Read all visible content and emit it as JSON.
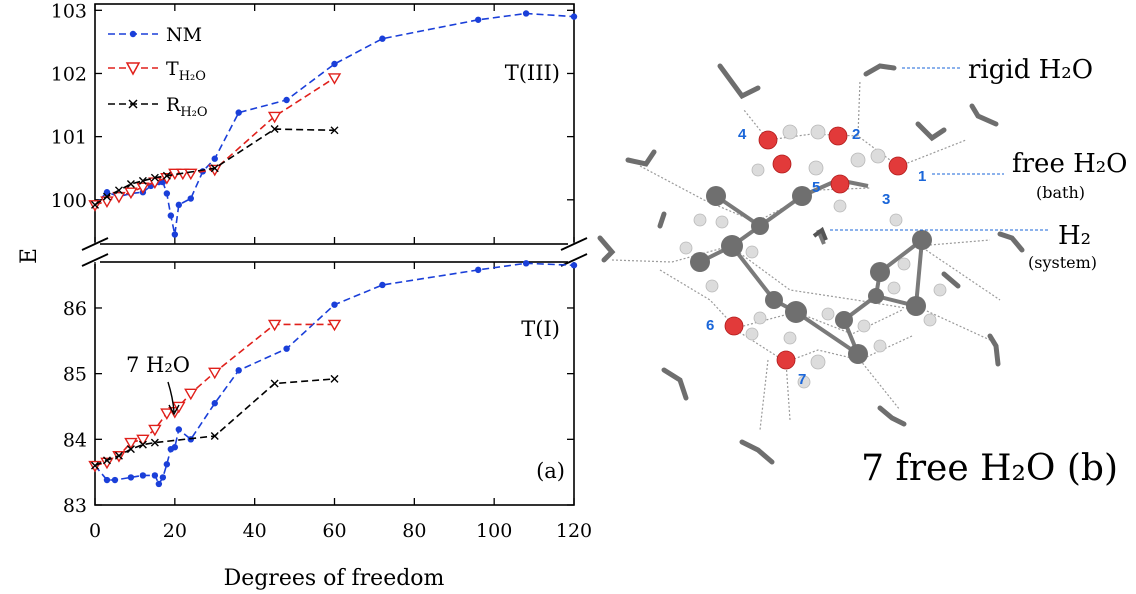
{
  "panel_a": {
    "label": "(a)",
    "ylabel": "E",
    "xlabel": "Degrees of freedom",
    "annotation_top": "T(III)",
    "annotation_bottom": "T(I)",
    "arrow_note": "7 H₂O"
  },
  "panel_b": {
    "label": "7 free H₂O (b)",
    "rigid_label": "rigid H₂O",
    "free_label": "free H₂O",
    "bath_label": "(bath)",
    "h2_label": "H₂",
    "system_label": "(system)",
    "water_numbers": [
      "1",
      "2",
      "3",
      "4",
      "5",
      "6",
      "7"
    ]
  },
  "legend": {
    "placement": "top-left",
    "entries": [
      {
        "key": "nm",
        "label": "NM",
        "color": "#1a3fd9",
        "marker": "dot"
      },
      {
        "key": "t",
        "label": "T",
        "subscript": "H₂O",
        "color": "#e0201b",
        "marker": "triangle-down"
      },
      {
        "key": "r",
        "label": "R",
        "subscript": "H₂O",
        "color": "#000000",
        "marker": "x"
      }
    ]
  },
  "chart_data": [
    {
      "type": "line",
      "title": "",
      "xlabel": "Degrees of freedom",
      "ylabel": "E",
      "annotation": "T(III)",
      "xlim": [
        0,
        120
      ],
      "ylim": [
        99.3,
        103.1
      ],
      "x_ticks": [
        0,
        20,
        40,
        60,
        80,
        100,
        120
      ],
      "y_ticks": [
        100,
        101,
        102,
        103
      ],
      "series": [
        {
          "name": "NM",
          "color": "#1a3fd9",
          "marker": "dot",
          "x": [
            0,
            3,
            6,
            9,
            12,
            14,
            16,
            17,
            18,
            19,
            20,
            21,
            24,
            27,
            30,
            36,
            48,
            60,
            72,
            96,
            108,
            120
          ],
          "y": [
            99.92,
            100.12,
            100.05,
            100.1,
            100.12,
            100.22,
            100.28,
            100.28,
            100.1,
            99.75,
            99.45,
            99.92,
            100.02,
            100.45,
            100.65,
            101.38,
            101.58,
            102.15,
            102.55,
            102.85,
            102.95,
            102.9
          ]
        },
        {
          "name": "T H₂O",
          "color": "#e0201b",
          "marker": "triangle-down",
          "x": [
            0,
            3,
            6,
            9,
            12,
            15,
            18,
            20,
            22,
            24,
            30,
            45,
            60
          ],
          "y": [
            99.92,
            99.98,
            100.05,
            100.12,
            100.2,
            100.28,
            100.35,
            100.42,
            100.42,
            100.42,
            100.48,
            101.32,
            101.93
          ]
        },
        {
          "name": "R H₂O",
          "color": "#000000",
          "marker": "x",
          "x": [
            0,
            3,
            6,
            9,
            12,
            15,
            18,
            30,
            45,
            60
          ],
          "y": [
            99.92,
            100.05,
            100.15,
            100.25,
            100.3,
            100.35,
            100.38,
            100.5,
            101.12,
            101.1
          ]
        }
      ]
    },
    {
      "type": "line",
      "title": "",
      "xlabel": "Degrees of freedom",
      "ylabel": "E",
      "annotation": "T(I)",
      "xlim": [
        0,
        120
      ],
      "ylim": [
        83,
        86.7
      ],
      "x_ticks": [
        0,
        20,
        40,
        60,
        80,
        100,
        120
      ],
      "y_ticks": [
        83,
        84,
        85,
        86
      ],
      "series": [
        {
          "name": "NM",
          "color": "#1a3fd9",
          "marker": "dot",
          "x": [
            0,
            3,
            5,
            9,
            12,
            15,
            16,
            17,
            18,
            19,
            20,
            21,
            24,
            30,
            36,
            48,
            60,
            72,
            96,
            108,
            120
          ],
          "y": [
            83.6,
            83.38,
            83.38,
            83.42,
            83.45,
            83.45,
            83.32,
            83.42,
            83.62,
            83.85,
            83.88,
            84.15,
            84.0,
            84.55,
            85.05,
            85.38,
            86.05,
            86.35,
            86.58,
            86.68,
            86.65
          ]
        },
        {
          "name": "T H₂O",
          "color": "#e0201b",
          "marker": "triangle-down",
          "x": [
            0,
            3,
            6,
            9,
            12,
            15,
            18,
            20,
            21,
            24,
            30,
            45,
            60
          ],
          "y": [
            83.6,
            83.65,
            83.75,
            83.95,
            84.0,
            84.15,
            84.4,
            84.42,
            84.5,
            84.7,
            85.02,
            85.75,
            85.75
          ]
        },
        {
          "name": "R H₂O",
          "color": "#000000",
          "marker": "x",
          "x": [
            0,
            3,
            6,
            9,
            12,
            15,
            30,
            45,
            60
          ],
          "y": [
            83.6,
            83.68,
            83.75,
            83.85,
            83.92,
            83.95,
            84.05,
            84.85,
            84.92
          ]
        }
      ]
    }
  ]
}
